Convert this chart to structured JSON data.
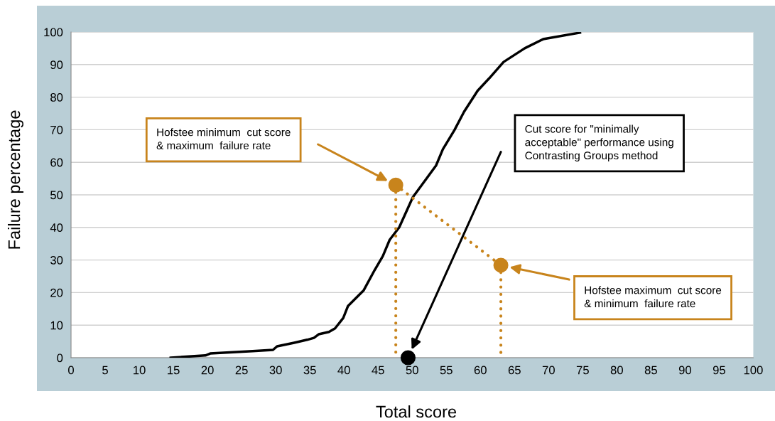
{
  "chart_data": {
    "type": "line",
    "xlabel": "Total score",
    "ylabel": "Failure percentage",
    "xlim": [
      0,
      100
    ],
    "xticks": [
      0,
      5,
      10,
      15,
      20,
      25,
      30,
      35,
      40,
      45,
      50,
      55,
      60,
      65,
      70,
      75,
      80,
      85,
      90,
      95,
      100
    ],
    "ylim": [
      0,
      100
    ],
    "yticks": [
      0,
      10,
      20,
      30,
      40,
      50,
      60,
      70,
      80,
      90,
      100
    ],
    "grid": "y",
    "series": [
      {
        "type": "line",
        "color": "#000000",
        "marker": "none",
        "line_style": "solid",
        "x": [
          14.6,
          19.7,
          20.4,
          26.6,
          29.6,
          30.2,
          32.7,
          34.6,
          35.6,
          36.3,
          37.8,
          38.7,
          39.9,
          40.6,
          42.9,
          44.5,
          45.7,
          46.7,
          48.1,
          50.1,
          51.4,
          53.5,
          54.5,
          56.2,
          57.6,
          59.6,
          61.3,
          63.4,
          66.5,
          69.2,
          74.6
        ],
        "values": [
          0,
          0.7,
          1.3,
          2,
          2.4,
          3.5,
          4.6,
          5.5,
          6.1,
          7.2,
          7.9,
          9,
          12.2,
          15.9,
          20.7,
          26.9,
          31.2,
          36.2,
          40,
          49.3,
          53,
          59,
          64,
          69.9,
          75.5,
          82,
          85.8,
          90.8,
          95,
          97.8,
          99.8
        ]
      },
      {
        "type": "line",
        "color": "#c8841c",
        "marker": "none",
        "line_style": "dotted",
        "x": [
          47.6,
          63
        ],
        "values": [
          53,
          28.4
        ]
      },
      {
        "type": "line",
        "color": "#c8841c",
        "marker": "none",
        "line_style": "dotted",
        "x": [
          47.6,
          47.6
        ],
        "values": [
          53,
          0
        ]
      },
      {
        "type": "line",
        "color": "#c8841c",
        "marker": "none",
        "line_style": "dotted",
        "x": [
          63,
          63
        ],
        "values": [
          28.4,
          0
        ]
      },
      {
        "type": "scatter",
        "color": "#c8841c",
        "marker": "circle",
        "x": [
          47.6,
          63
        ],
        "values": [
          53,
          28.4
        ]
      },
      {
        "type": "scatter",
        "color": "#000000",
        "marker": "circle",
        "x": [
          49.4
        ],
        "values": [
          0
        ]
      }
    ],
    "annotations": [
      "Hofstee minimum  cut score\n& maximum  failure rate",
      "Cut score for \"minimally\nacceptable\" performance using\nContrasting Groups method",
      "Hofstee maximum  cut score\n& minimum  failure rate"
    ]
  }
}
